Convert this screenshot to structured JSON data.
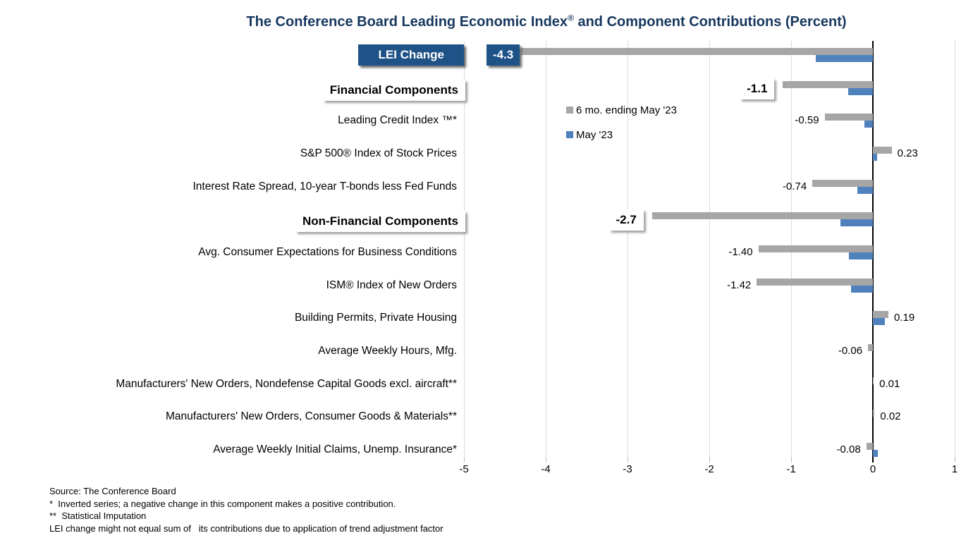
{
  "title": {
    "part1": "The Conference Board Leading Economic Index",
    "registered": "®",
    "part2": " and Component Contributions (Percent)"
  },
  "colors": {
    "title_navy": "#17375E",
    "label_box_navy": "#1F5387",
    "six_month_bar": "#A6A6A6",
    "may_bar": "#4F81BD",
    "gridline": "#D9D9D9",
    "axis": "#000000"
  },
  "legend": {
    "items": [
      {
        "label": "6 mo. ending May '23",
        "color": "#A6A6A6"
      },
      {
        "label": "May '23",
        "color": "#4F81BD"
      }
    ]
  },
  "chart_data": {
    "type": "bar",
    "orientation": "horizontal",
    "title": "The Conference Board Leading Economic Index® and Component Contributions (Percent)",
    "series_names": [
      "6 mo. ending May '23",
      "May '23"
    ],
    "axis": {
      "tick_labels": [
        "-5",
        "-4",
        "-3",
        "-2",
        "-1",
        "0",
        "1"
      ],
      "tick_values": [
        -5,
        -4,
        -3,
        -2,
        -1,
        0,
        1
      ],
      "xlim": [
        -5.5,
        1.0
      ],
      "grid": true,
      "legend_position": "inside-top-left-of-plot"
    },
    "rows": [
      {
        "label": "LEI Change",
        "style": "navy",
        "six_month": -4.3,
        "six_month_label": "-4.3",
        "may": -0.7
      },
      {
        "label": "Financial Components",
        "style": "section",
        "six_month": -1.1,
        "six_month_label": "-1.1",
        "may": -0.3
      },
      {
        "label": "Leading Credit Index ™*",
        "style": "plain",
        "six_month": -0.59,
        "six_month_label": "-0.59",
        "may": -0.1
      },
      {
        "label": "S&P 500® Index of Stock Prices",
        "style": "plain",
        "six_month": 0.23,
        "six_month_label": "0.23",
        "may": 0.05
      },
      {
        "label": "Interest Rate Spread, 10-year T-bonds less Fed Funds",
        "style": "plain",
        "six_month": -0.74,
        "six_month_label": "-0.74",
        "may": -0.19
      },
      {
        "label": "Non-Financial Components",
        "style": "section",
        "six_month": -2.7,
        "six_month_label": "-2.7",
        "may": -0.4
      },
      {
        "label": "Avg. Consumer Expectations for Business Conditions",
        "style": "plain",
        "six_month": -1.4,
        "six_month_label": "-1.40",
        "may": -0.29
      },
      {
        "label": "ISM® Index of New Orders",
        "style": "plain",
        "six_month": -1.42,
        "six_month_label": "-1.42",
        "may": -0.27
      },
      {
        "label": "Building Permits, Private Housing",
        "style": "plain",
        "six_month": 0.19,
        "six_month_label": "0.19",
        "may": 0.15
      },
      {
        "label": "Average Weekly Hours, Mfg.",
        "style": "plain",
        "six_month": -0.06,
        "six_month_label": "-0.06",
        "may": 0.0
      },
      {
        "label": "Manufacturers' New Orders, Nondefense Capital Goods excl. aircraft**",
        "style": "plain",
        "six_month": 0.01,
        "six_month_label": "0.01",
        "may": 0.0
      },
      {
        "label": "Manufacturers' New Orders, Consumer Goods & Materials**",
        "style": "plain",
        "six_month": 0.02,
        "six_month_label": "0.02",
        "may": 0.0
      },
      {
        "label": "Average Weekly Initial Claims, Unemp. Insurance*",
        "style": "plain",
        "six_month": -0.08,
        "six_month_label": "-0.08",
        "may": 0.06
      }
    ]
  },
  "footnotes": [
    "Source: The Conference Board",
    "*  Inverted series; a negative change in this component makes a positive contribution.",
    "**  Statistical Imputation",
    "LEI change might not equal sum of   its contributions due to application of trend adjustment factor"
  ]
}
